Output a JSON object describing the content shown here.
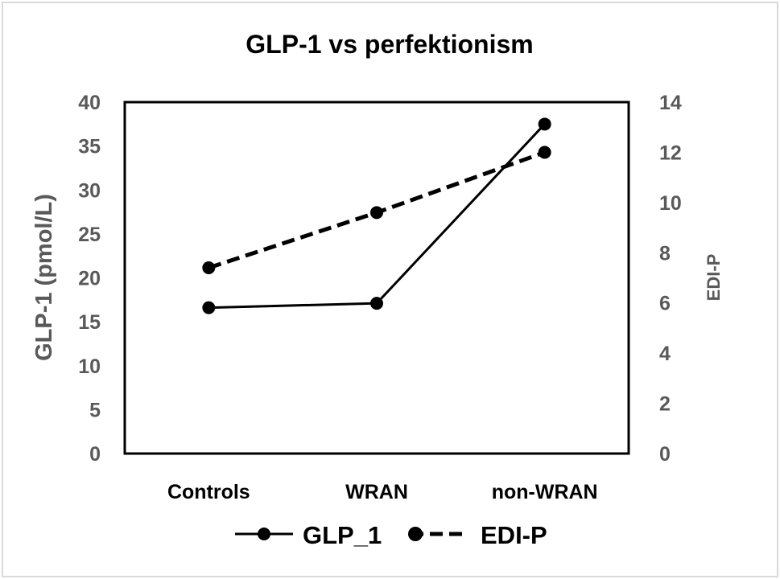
{
  "chart_data": {
    "type": "line",
    "title": "GLP-1 vs perfektionism",
    "categories": [
      "Controls",
      "WRAN",
      "non-WRAN"
    ],
    "ylabel": "GLP-1 (pmol/L)",
    "y2label": "EDI-P",
    "ylim": [
      0,
      40
    ],
    "y2lim": [
      0,
      14
    ],
    "yticks": [
      "0",
      "5",
      "10",
      "15",
      "20",
      "25",
      "30",
      "35",
      "40"
    ],
    "y2ticks": [
      "0",
      "2",
      "4",
      "6",
      "8",
      "10",
      "12",
      "14"
    ],
    "grid": false,
    "legend_position": "bottom",
    "series": [
      {
        "name": "GLP_1",
        "axis": "left",
        "style": "solid",
        "color": "#000000",
        "values": [
          16.6,
          17.1,
          37.5
        ]
      },
      {
        "name": "EDI-P",
        "axis": "right",
        "style": "dashed",
        "color": "#000000",
        "values": [
          7.4,
          9.6,
          12.0
        ]
      }
    ]
  }
}
